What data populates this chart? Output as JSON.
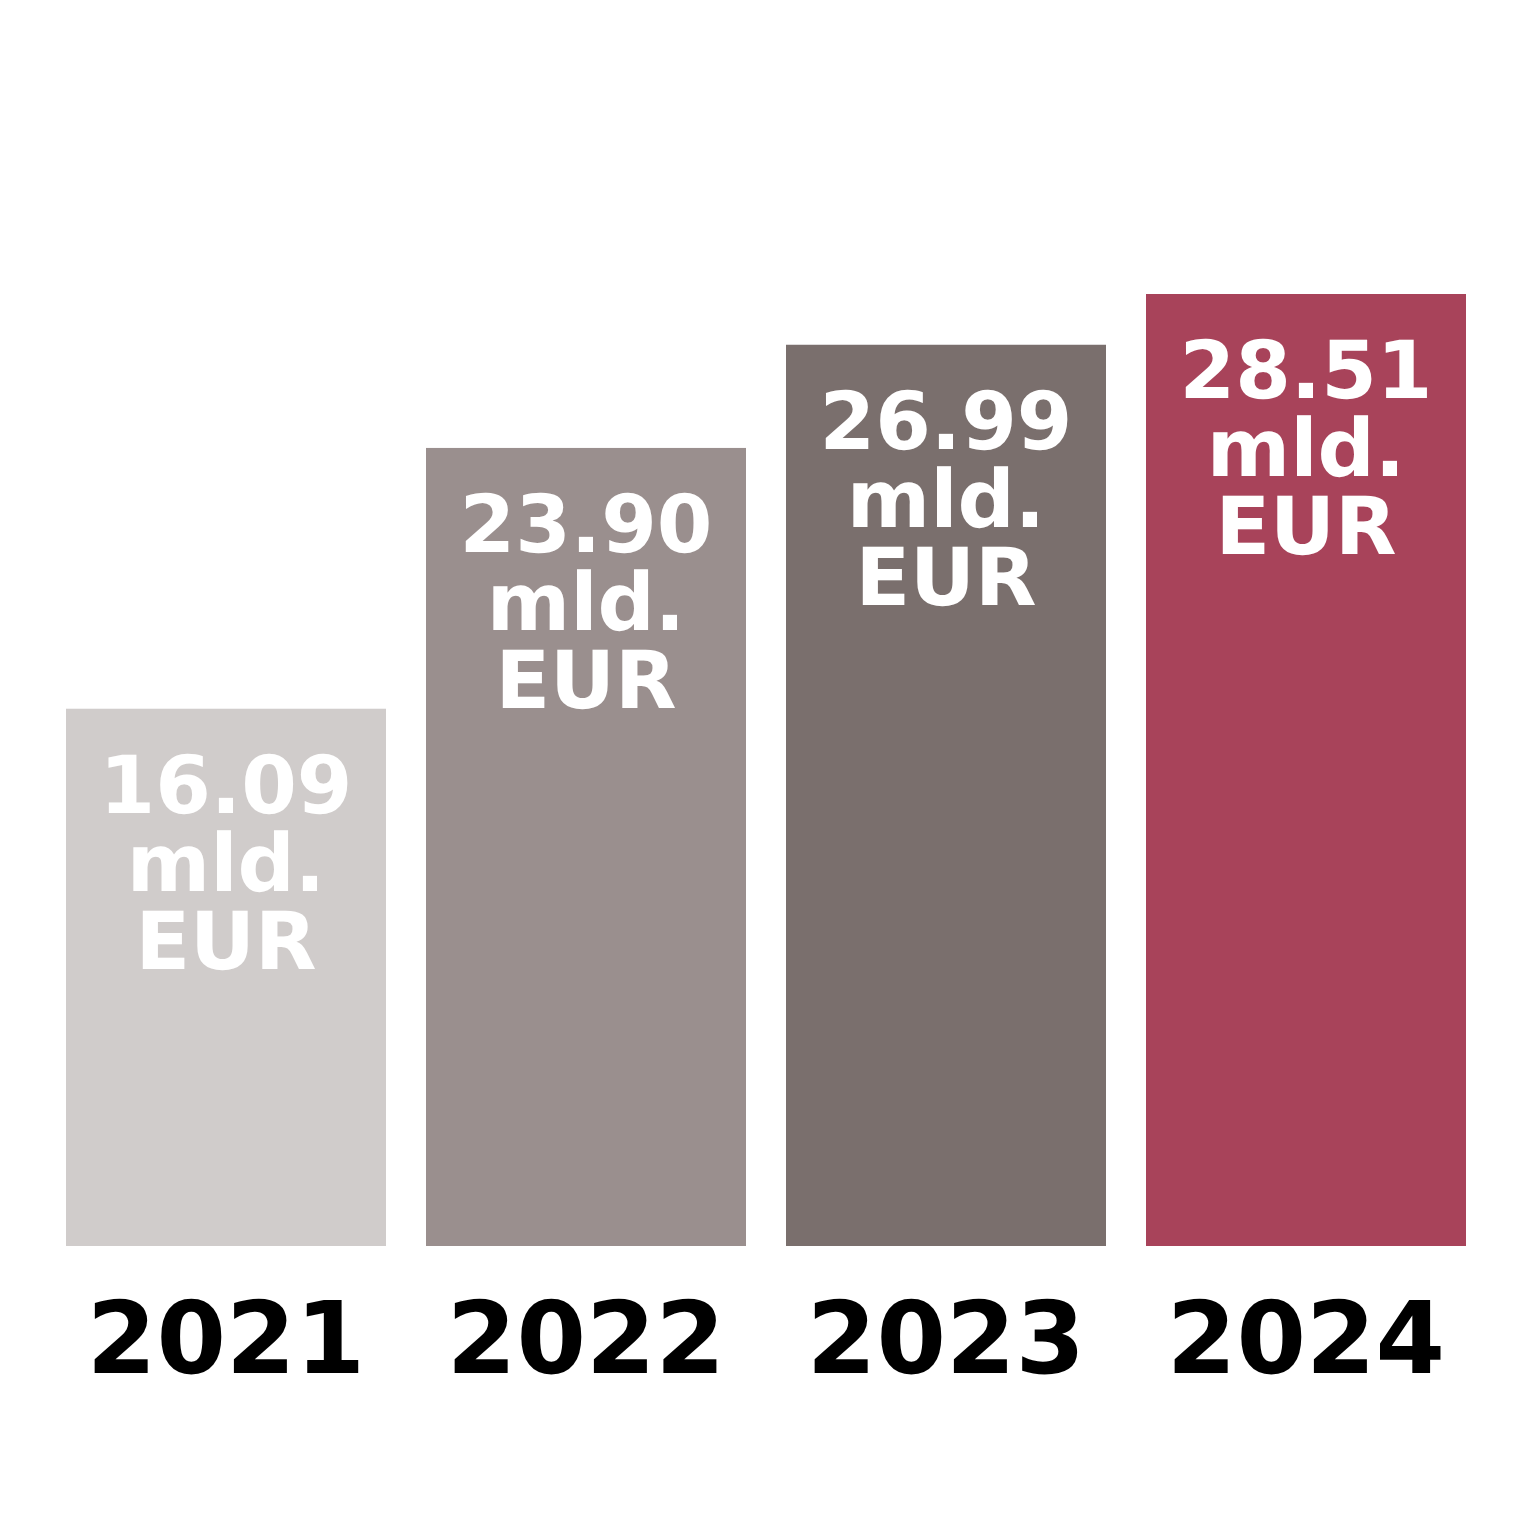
{
  "chart_data": {
    "type": "bar",
    "categories": [
      "2021",
      "2022",
      "2023",
      "2024"
    ],
    "values": [
      16.09,
      23.9,
      26.99,
      28.51
    ],
    "colors": [
      "#d0cccb",
      "#9a8f8e",
      "#7a6f6d",
      "#a8435a"
    ],
    "value_labels": [
      "16.09 mld. EUR",
      "23.90 mld. EUR",
      "26.99 mld. EUR",
      "28.51 mld. EUR"
    ]
  }
}
